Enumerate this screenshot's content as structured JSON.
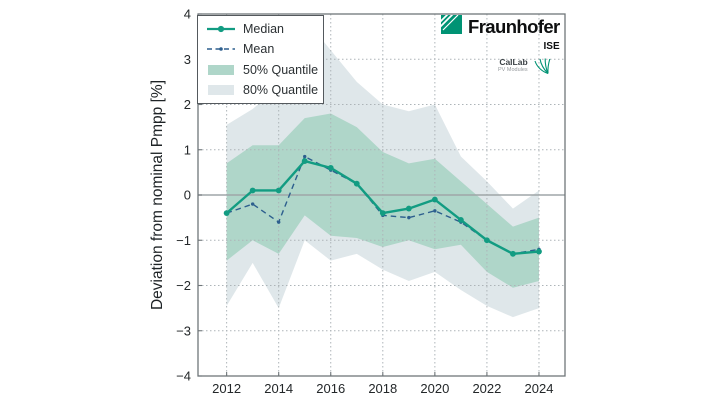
{
  "branding": {
    "fraunhofer": "Fraunhofer",
    "institute": "ISE",
    "callab": "CalLab",
    "callab_sub": "PV Modules"
  },
  "legend": {
    "median": "Median",
    "mean": "Mean",
    "q50": "50% Quantile",
    "q80": "80% Quantile"
  },
  "colors": {
    "median": "#129c82",
    "mean": "#2d5f8e",
    "q50_fill": "#afd6c9",
    "q80_fill": "#dfe7ea",
    "zero_line": "#9fa5a8",
    "grid": "#adb4b8",
    "frame": "#6f7679",
    "text": "#232729",
    "logo_green": "#009374"
  },
  "chart_data": {
    "type": "line",
    "title": "",
    "xlabel": "",
    "ylabel": "Deviation from nominal Pmpp [%]",
    "ylim": [
      -4,
      4
    ],
    "yticks": [
      4,
      3,
      2,
      1,
      0,
      -1,
      -2,
      -3,
      -4
    ],
    "xticks": [
      2012,
      2014,
      2016,
      2018,
      2020,
      2022,
      2024
    ],
    "grid": true,
    "legend_position": "upper left",
    "x": [
      2012,
      2013,
      2014,
      2015,
      2016,
      2017,
      2018,
      2019,
      2020,
      2021,
      2022,
      2023,
      2024
    ],
    "series": [
      {
        "name": "Median",
        "values": [
          -0.4,
          0.1,
          0.1,
          0.75,
          0.6,
          0.25,
          -0.4,
          -0.3,
          -0.1,
          -0.55,
          -1.0,
          -1.3,
          -1.25
        ]
      },
      {
        "name": "Mean",
        "values": [
          -0.4,
          -0.2,
          -0.6,
          0.85,
          0.55,
          0.25,
          -0.45,
          -0.5,
          -0.35,
          -0.6,
          -1.0,
          -1.3,
          -1.2
        ]
      }
    ],
    "bands": [
      {
        "id": "q80-band",
        "name": "80% Quantile",
        "fill": "#dfe7ea",
        "upper": [
          1.55,
          1.9,
          2.4,
          3.9,
          3.2,
          2.5,
          2.0,
          1.85,
          2.0,
          0.85,
          0.3,
          -0.3,
          0.1
        ],
        "lower": [
          -2.45,
          -1.5,
          -2.5,
          -1.0,
          -1.45,
          -1.3,
          -1.65,
          -1.9,
          -1.7,
          -2.1,
          -2.45,
          -2.7,
          -2.5
        ]
      },
      {
        "id": "q50-band",
        "name": "50% Quantile",
        "fill": "#afd6c9",
        "upper": [
          0.7,
          1.1,
          1.1,
          1.7,
          1.8,
          1.5,
          0.95,
          0.7,
          0.8,
          0.3,
          -0.2,
          -0.7,
          -0.5
        ],
        "lower": [
          -1.45,
          -1.0,
          -1.3,
          -0.45,
          -0.9,
          -0.95,
          -1.15,
          -1.0,
          -1.2,
          -1.1,
          -1.7,
          -2.05,
          -1.9
        ]
      }
    ]
  }
}
